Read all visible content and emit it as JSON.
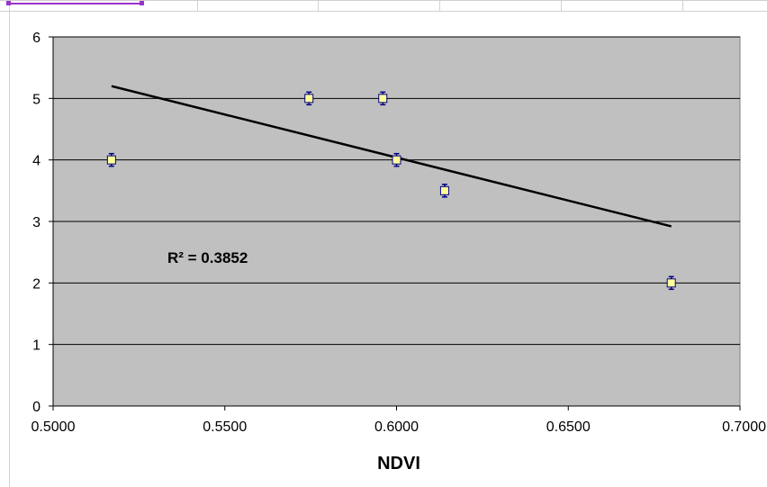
{
  "chart_data": {
    "type": "scatter",
    "title": "",
    "xlabel": "NDVI",
    "ylabel": "",
    "xlim": [
      0.5,
      0.7
    ],
    "ylim": [
      0,
      6
    ],
    "x_ticks": [
      "0.5000",
      "0.5500",
      "0.6000",
      "0.6500",
      "0.7000"
    ],
    "y_ticks": [
      "0",
      "1",
      "2",
      "3",
      "4",
      "5",
      "6"
    ],
    "grid": "horizontal",
    "legend": "none",
    "points": [
      {
        "x": 0.517,
        "y": 4.0
      },
      {
        "x": 0.5745,
        "y": 5.0
      },
      {
        "x": 0.596,
        "y": 5.0
      },
      {
        "x": 0.6,
        "y": 4.0
      },
      {
        "x": 0.614,
        "y": 3.5
      },
      {
        "x": 0.68,
        "y": 2.0
      }
    ],
    "trendline": {
      "x": [
        0.517,
        0.68
      ],
      "y": [
        5.2,
        2.92
      ]
    },
    "annotation": "R² = 0.3852",
    "colors": {
      "plot_area": "#c0c0c0",
      "marker_fill": "#ffff99",
      "marker_edge": "#000080",
      "trendline": "#000000",
      "gridline": "#000000"
    }
  }
}
